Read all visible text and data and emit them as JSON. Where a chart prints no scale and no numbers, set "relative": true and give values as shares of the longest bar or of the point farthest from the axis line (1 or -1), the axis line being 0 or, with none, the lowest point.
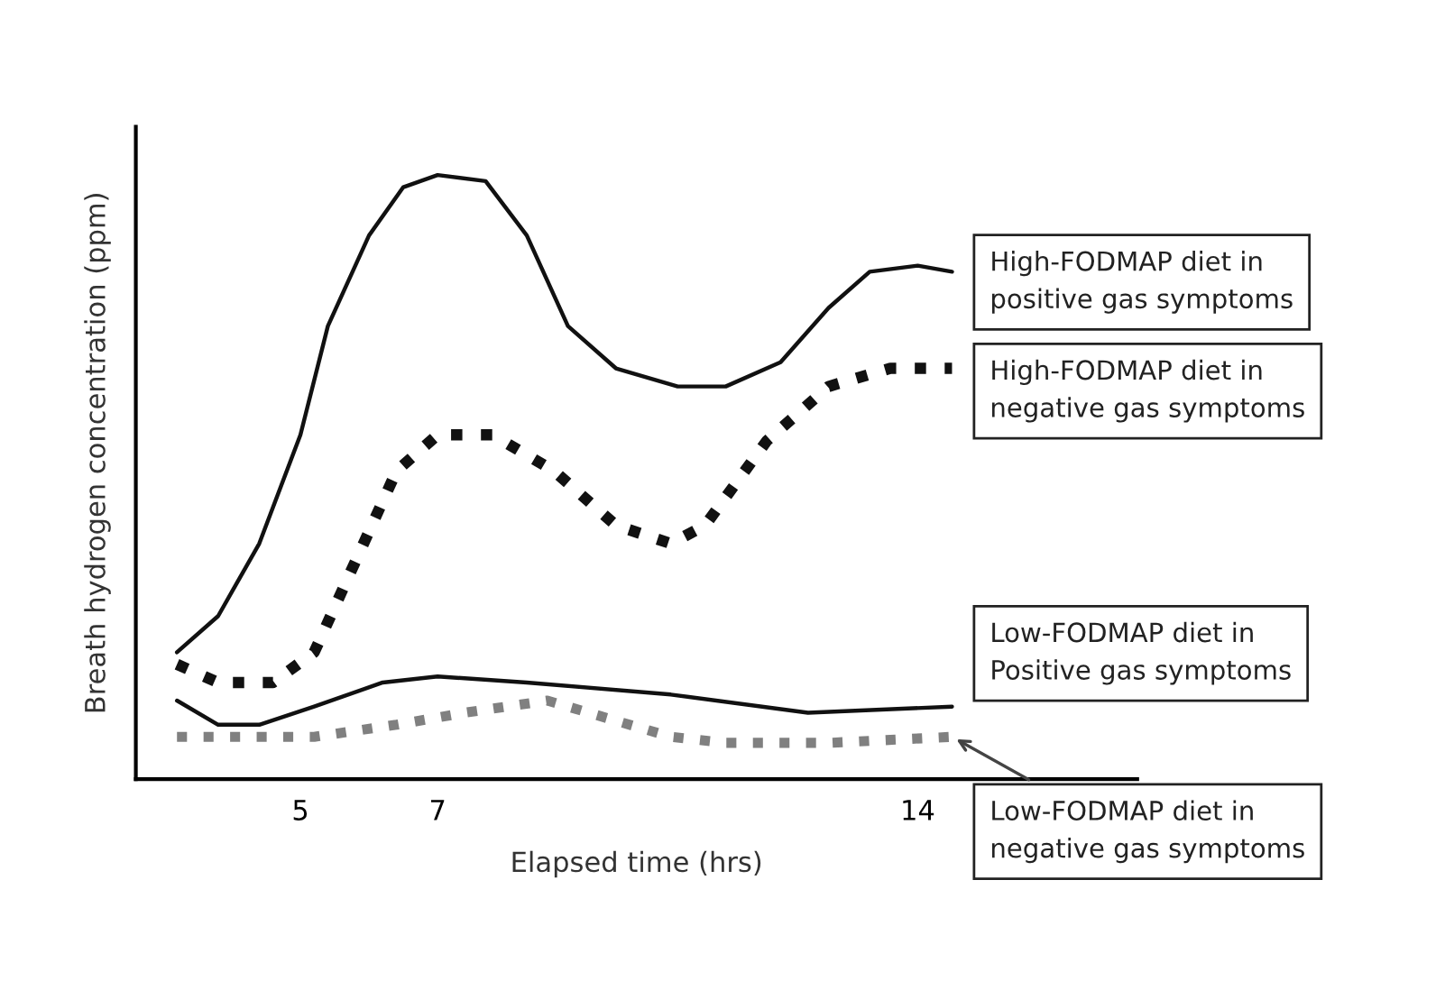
{
  "chart_data": {
    "type": "line",
    "relative": true,
    "xlabel": "Elapsed time (hrs)",
    "ylabel": "Breath hydrogen concentration (ppm)",
    "xlim": [
      2.6,
      17.2
    ],
    "xticks": [
      5,
      7,
      14
    ],
    "grid": false,
    "legend": false,
    "series": [
      {
        "color": "#111111",
        "line_style": "solid",
        "x": [
          3.2,
          3.8,
          4.4,
          5.0,
          5.4,
          6.0,
          6.5,
          7.0,
          7.7,
          8.3,
          8.9,
          9.6,
          10.5,
          11.2,
          12.0,
          12.7,
          13.3,
          14.0,
          14.5
        ],
        "values": [
          0.21,
          0.27,
          0.39,
          0.57,
          0.75,
          0.9,
          0.98,
          1.0,
          0.99,
          0.9,
          0.75,
          0.68,
          0.65,
          0.65,
          0.69,
          0.78,
          0.84,
          0.85,
          0.84
        ]
      },
      {
        "color": "#111111",
        "line_style": "dotted",
        "x": [
          3.2,
          3.8,
          4.6,
          5.2,
          5.8,
          6.4,
          7.0,
          7.8,
          8.7,
          9.6,
          10.4,
          10.9,
          11.8,
          12.7,
          13.6,
          14.5
        ],
        "values": [
          0.19,
          0.16,
          0.16,
          0.21,
          0.36,
          0.51,
          0.57,
          0.57,
          0.51,
          0.42,
          0.39,
          0.42,
          0.56,
          0.65,
          0.68,
          0.68
        ]
      },
      {
        "color": "#111111",
        "line_style": "solid",
        "x": [
          3.2,
          3.8,
          4.4,
          5.2,
          6.2,
          7.0,
          8.3,
          10.4,
          12.4,
          14.5
        ],
        "values": [
          0.13,
          0.09,
          0.09,
          0.12,
          0.16,
          0.17,
          0.16,
          0.14,
          0.11,
          0.12
        ]
      },
      {
        "color": "#808080",
        "line_style": "dotted",
        "x": [
          3.2,
          4.0,
          5.2,
          6.4,
          7.4,
          8.6,
          9.5,
          10.4,
          11.2,
          12.7,
          14.5
        ],
        "values": [
          0.07,
          0.07,
          0.07,
          0.09,
          0.11,
          0.13,
          0.1,
          0.07,
          0.06,
          0.06,
          0.07
        ]
      }
    ],
    "annotations": [
      "High-FODMAP diet in\npositive gas symptoms",
      "High-FODMAP diet in\nnegative gas symptoms",
      "Low-FODMAP diet in\nPositive gas symptoms",
      {
        "text": "Low-FODMAP diet in\nnegative gas symptoms",
        "x": 14.5,
        "y": 0.07
      }
    ]
  }
}
